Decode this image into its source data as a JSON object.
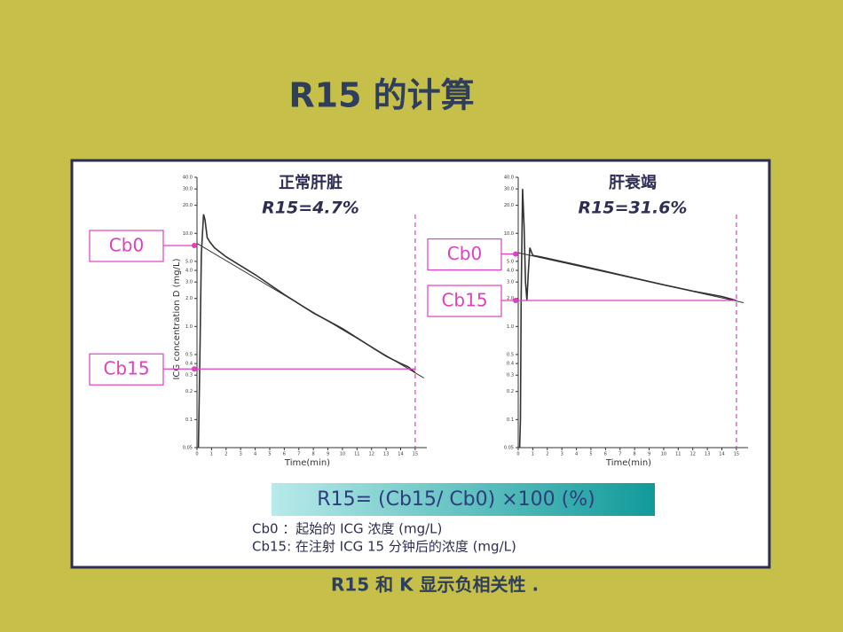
{
  "title": "R15 的计算",
  "formula": "R15= (Cb15/ Cb0) ×100 (%)",
  "definitions": [
    "Cb0 ：起始的 ICG 浓度 (mg/L)",
    "Cb15:  在注射 ICG 15 分钟后的浓度 (mg/L)"
  ],
  "footer": "R15  和 K 显示负相关性 .",
  "chart_data": [
    {
      "type": "line",
      "title": "正常肝脏",
      "subtitle": "R15=4.7%",
      "xlabel": "Time(min)",
      "ylabel": "ICG concentration D (mg/L)",
      "log_y": true,
      "xlim": [
        0,
        15.8
      ],
      "ylim": [
        0.05,
        40
      ],
      "xticks": [
        0,
        1,
        2,
        3,
        4,
        5,
        6,
        7,
        8,
        9,
        10,
        11,
        12,
        13,
        14,
        15
      ],
      "yticks": [
        0.05,
        0.1,
        0.2,
        0.3,
        0.4,
        0.5,
        {
          "value": 1,
          "label": "1.0"
        },
        {
          "value": 2,
          "label": "2.0"
        },
        {
          "value": 3,
          "label": "3.0"
        },
        {
          "value": 4,
          "label": "4.0"
        },
        {
          "value": 5,
          "label": "5.0"
        },
        {
          "value": 10,
          "label": "10.0"
        },
        {
          "value": 20,
          "label": "20.0"
        },
        {
          "value": 30,
          "label": "30.0"
        },
        {
          "value": 40,
          "label": "40.0"
        }
      ],
      "vline": 15,
      "markers": [
        {
          "label": "Cb0",
          "value": 7.4
        },
        {
          "label": "Cb15",
          "value": 0.35
        }
      ],
      "marker_color": "#e040c0",
      "series": [
        {
          "color": "#333333",
          "x": [
            0.1,
            0.2,
            0.3,
            0.45,
            0.55,
            0.7,
            0.9,
            1.2,
            2,
            4,
            6,
            8,
            10,
            12,
            13,
            14,
            14.5,
            15
          ],
          "values": [
            0.05,
            0.5,
            6,
            16,
            14,
            9,
            8,
            7,
            5.6,
            3.6,
            2.2,
            1.4,
            0.95,
            0.6,
            0.48,
            0.4,
            0.37,
            0.32
          ]
        },
        {
          "color": "#333333",
          "x": [
            0,
            15.6
          ],
          "values": [
            7.8,
            0.28
          ]
        }
      ]
    },
    {
      "type": "line",
      "title": "肝衰竭",
      "subtitle": "R15=31.6%",
      "xlabel": "Time(min)",
      "log_y": true,
      "xlim": [
        0,
        15.8
      ],
      "ylim": [
        0.05,
        40
      ],
      "xticks": [
        0,
        1,
        2,
        3,
        4,
        5,
        6,
        7,
        8,
        9,
        10,
        11,
        12,
        13,
        14,
        15
      ],
      "yticks": [
        0.05,
        0.1,
        0.2,
        0.3,
        0.4,
        0.5,
        {
          "value": 1,
          "label": "1.0"
        },
        {
          "value": 2,
          "label": "2.0"
        },
        {
          "value": 3,
          "label": "3.0"
        },
        {
          "value": 4,
          "label": "4.0"
        },
        {
          "value": 5,
          "label": "5.0"
        },
        {
          "value": 10,
          "label": "10.0"
        },
        {
          "value": 20,
          "label": "20.0"
        },
        {
          "value": 30,
          "label": "30.0"
        },
        {
          "value": 40,
          "label": "40.0"
        }
      ],
      "vline": 15,
      "markers": [
        {
          "label": "Cb0",
          "value": 6.0
        },
        {
          "label": "Cb15",
          "value": 1.9
        }
      ],
      "marker_color": "#e040c0",
      "series": [
        {
          "color": "#333333",
          "x": [
            0.1,
            0.15,
            0.2,
            0.3,
            0.4,
            0.5,
            0.6,
            0.7,
            0.8,
            1.0,
            1.5,
            2,
            4,
            6,
            8,
            10,
            12,
            14,
            15
          ],
          "values": [
            0.05,
            0.1,
            2,
            30,
            12,
            3,
            1.9,
            4,
            7,
            5.8,
            5.6,
            5.4,
            4.6,
            3.9,
            3.3,
            2.8,
            2.4,
            2.1,
            1.9
          ]
        },
        {
          "color": "#333333",
          "x": [
            0,
            15.5
          ],
          "values": [
            6.2,
            1.8
          ]
        }
      ]
    }
  ]
}
